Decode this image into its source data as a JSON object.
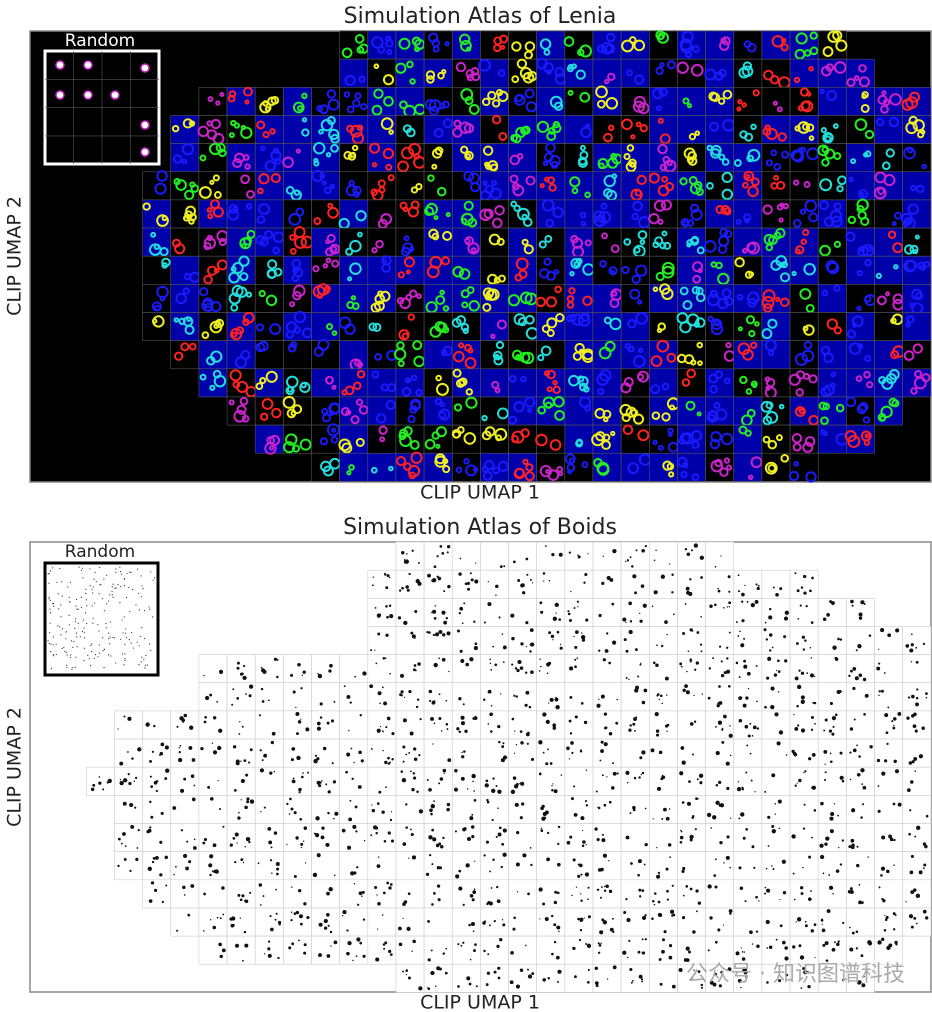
{
  "panels": [
    {
      "title": "Simulation Atlas of Lenia",
      "x_label": "CLIP UMAP 1",
      "y_label": "CLIP UMAP 2",
      "inset_label": "Random"
    },
    {
      "title": "Simulation Atlas of Boids",
      "x_label": "CLIP UMAP 1",
      "y_label": "CLIP UMAP 2",
      "inset_label": "Random"
    }
  ],
  "watermark": "公众号 · 知识图谱科技"
}
